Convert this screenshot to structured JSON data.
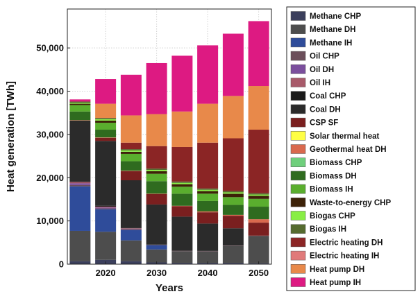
{
  "chart_data": {
    "type": "bar",
    "stacked": true,
    "xlabel": "Years",
    "ylabel": "Heat generation [TWh]",
    "ylim": [
      0,
      59000
    ],
    "y_ticks": [
      0,
      10000,
      20000,
      30000,
      40000,
      50000
    ],
    "y_tick_labels": [
      "0",
      "10,000",
      "20,000",
      "30,000",
      "40,000",
      "50,000"
    ],
    "x_ticks": [
      "2020",
      "2030",
      "2040",
      "2050"
    ],
    "grid": true,
    "legend_position": "right, outside plot",
    "categories": [
      "2015",
      "2020",
      "2025",
      "2030",
      "2035",
      "2040",
      "2045",
      "2050"
    ],
    "series": [
      {
        "name": "Methane CHP",
        "color": "#3b3f5c",
        "values": [
          700,
          1000,
          700,
          400,
          300,
          300,
          300,
          200
        ]
      },
      {
        "name": "Methane DH",
        "color": "#4d4d4d",
        "values": [
          7000,
          6500,
          4800,
          3000,
          2700,
          2600,
          3900,
          6300
        ]
      },
      {
        "name": "Methane IH",
        "color": "#2f4c9a",
        "values": [
          10300,
          5200,
          2400,
          1000,
          0,
          0,
          0,
          0
        ]
      },
      {
        "name": "Oil CHP",
        "color": "#6b4e5a",
        "values": [
          300,
          200,
          200,
          100,
          100,
          100,
          100,
          100
        ]
      },
      {
        "name": "Oil DH",
        "color": "#7b4f9d",
        "values": [
          400,
          200,
          100,
          0,
          0,
          0,
          0,
          0
        ]
      },
      {
        "name": "Oil IH",
        "color": "#a85a6a",
        "values": [
          300,
          200,
          100,
          0,
          0,
          0,
          0,
          0
        ]
      },
      {
        "name": "Coal CHP",
        "color": "#1a1a1a",
        "values": [
          200,
          200,
          100,
          100,
          100,
          100,
          100,
          0
        ]
      },
      {
        "name": "Coal DH",
        "color": "#2b2b2b",
        "values": [
          14000,
          15000,
          11000,
          9200,
          7800,
          6300,
          3900,
          0
        ]
      },
      {
        "name": "CSP SF",
        "color": "#7a1f1f",
        "values": [
          0,
          700,
          2100,
          2400,
          2400,
          2600,
          2900,
          3000
        ]
      },
      {
        "name": "Solar thermal heat",
        "color": "#ffff44",
        "values": [
          0,
          0,
          0,
          0,
          0,
          0,
          0,
          0
        ]
      },
      {
        "name": "Geothermal heat DH",
        "color": "#d9694e",
        "values": [
          100,
          100,
          100,
          100,
          100,
          200,
          200,
          800
        ]
      },
      {
        "name": "Biomass CHP",
        "color": "#6fcf7c",
        "values": [
          0,
          0,
          0,
          0,
          0,
          0,
          0,
          0
        ]
      },
      {
        "name": "Biomass DH",
        "color": "#2f6b1f",
        "values": [
          2000,
          1800,
          2200,
          2900,
          2800,
          2400,
          2300,
          2900
        ]
      },
      {
        "name": "Biomass IH",
        "color": "#5aae2e",
        "values": [
          1500,
          1600,
          1700,
          1700,
          1600,
          1700,
          1800,
          1800
        ]
      },
      {
        "name": "Waste-to-energy CHP",
        "color": "#3d2208",
        "values": [
          300,
          500,
          500,
          600,
          600,
          600,
          800,
          700
        ]
      },
      {
        "name": "Biogas CHP",
        "color": "#88ee44",
        "values": [
          200,
          300,
          300,
          300,
          300,
          300,
          300,
          300
        ]
      },
      {
        "name": "Biogas IH",
        "color": "#556b2f",
        "values": [
          300,
          300,
          300,
          300,
          300,
          300,
          300,
          300
        ]
      },
      {
        "name": "Electric heating DH",
        "color": "#8b2525",
        "values": [
          0,
          0,
          1500,
          5200,
          8000,
          10600,
          12200,
          14700
        ]
      },
      {
        "name": "Electric heating IH",
        "color": "#e07a7a",
        "values": [
          0,
          0,
          0,
          0,
          0,
          0,
          0,
          0
        ]
      },
      {
        "name": "Heat pump DH",
        "color": "#e8894a",
        "values": [
          0,
          3300,
          6300,
          7400,
          8200,
          9000,
          9800,
          10100
        ]
      },
      {
        "name": "Heat pump IH",
        "color": "#dd1a82",
        "values": [
          500,
          5700,
          9400,
          11800,
          12900,
          13500,
          14400,
          15000
        ]
      }
    ]
  }
}
